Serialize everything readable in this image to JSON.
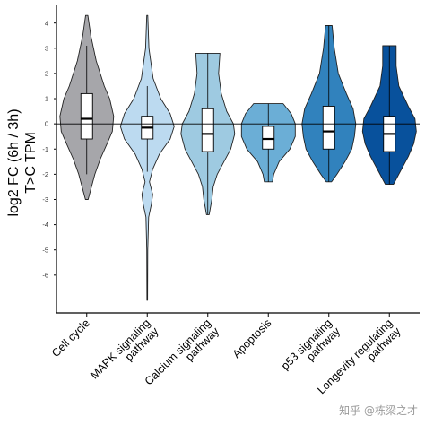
{
  "chart_data": {
    "type": "violin",
    "ylabel_lines": [
      "log2 FC (6h / 3h)",
      "T>C TPM"
    ],
    "xlabel": "",
    "ylim": [
      -7.5,
      4.7
    ],
    "yticks": [
      4,
      3,
      2,
      1,
      0,
      -1,
      -2,
      -3,
      -4,
      -5,
      -6
    ],
    "reference_line": 0,
    "categories": [
      {
        "lines": [
          "Cell cycle"
        ],
        "color": "#a6a6aa",
        "min": -3.0,
        "max": 4.3,
        "q1": -0.6,
        "median": 0.2,
        "q3": 1.2,
        "whisker_low": -2.0,
        "whisker_high": 3.1,
        "density": [
          [
            4.3,
            0.04
          ],
          [
            3.5,
            0.15
          ],
          [
            2.5,
            0.35
          ],
          [
            1.5,
            0.65
          ],
          [
            1.0,
            0.85
          ],
          [
            0.3,
            1.0
          ],
          [
            -0.3,
            0.95
          ],
          [
            -0.8,
            0.75
          ],
          [
            -1.4,
            0.5
          ],
          [
            -2.0,
            0.3
          ],
          [
            -2.6,
            0.15
          ],
          [
            -3.0,
            0.05
          ]
        ]
      },
      {
        "lines": [
          "MAPK signaling",
          "pathway"
        ],
        "color": "#bcdaf0",
        "min": -7.0,
        "max": 4.3,
        "q1": -0.6,
        "median": -0.15,
        "q3": 0.3,
        "whisker_low": -1.9,
        "whisker_high": 1.5,
        "density": [
          [
            4.3,
            0.02
          ],
          [
            3.0,
            0.06
          ],
          [
            1.8,
            0.22
          ],
          [
            1.0,
            0.5
          ],
          [
            0.4,
            0.85
          ],
          [
            -0.1,
            1.0
          ],
          [
            -0.6,
            0.85
          ],
          [
            -1.2,
            0.45
          ],
          [
            -1.8,
            0.2
          ],
          [
            -2.3,
            0.08
          ],
          [
            -2.8,
            0.2
          ],
          [
            -3.2,
            0.15
          ],
          [
            -3.7,
            0.05
          ],
          [
            -5.0,
            0.02
          ],
          [
            -7.0,
            0.01
          ]
        ]
      },
      {
        "lines": [
          "Calcium signaling",
          "pathway"
        ],
        "color": "#9ecae1",
        "min": -3.6,
        "max": 2.8,
        "q1": -1.1,
        "median": -0.4,
        "q3": 0.6,
        "whisker_low": -3.6,
        "whisker_high": 2.8,
        "density": [
          [
            2.8,
            0.45
          ],
          [
            2.0,
            0.4
          ],
          [
            1.2,
            0.5
          ],
          [
            0.5,
            0.7
          ],
          [
            0.0,
            0.95
          ],
          [
            -0.4,
            1.0
          ],
          [
            -1.0,
            0.85
          ],
          [
            -1.5,
            0.6
          ],
          [
            -2.0,
            0.35
          ],
          [
            -2.5,
            0.2
          ],
          [
            -3.0,
            0.15
          ],
          [
            -3.6,
            0.05
          ]
        ]
      },
      {
        "lines": [
          "Apoptosis"
        ],
        "color": "#6baed6",
        "min": -2.3,
        "max": 0.8,
        "q1": -1.0,
        "median": -0.6,
        "q3": -0.1,
        "whisker_low": -2.3,
        "whisker_high": 0.8,
        "density": [
          [
            0.8,
            0.55
          ],
          [
            0.4,
            0.85
          ],
          [
            0.0,
            1.0
          ],
          [
            -0.5,
            1.0
          ],
          [
            -1.0,
            0.8
          ],
          [
            -1.5,
            0.4
          ],
          [
            -2.0,
            0.2
          ],
          [
            -2.3,
            0.15
          ]
        ]
      },
      {
        "lines": [
          "p53 signaling",
          "pathway"
        ],
        "color": "#3182bd",
        "min": -2.3,
        "max": 3.9,
        "q1": -1.0,
        "median": -0.3,
        "q3": 0.7,
        "whisker_low": -2.3,
        "whisker_high": 3.9,
        "density": [
          [
            3.9,
            0.12
          ],
          [
            3.0,
            0.2
          ],
          [
            2.0,
            0.35
          ],
          [
            1.2,
            0.65
          ],
          [
            0.6,
            0.9
          ],
          [
            0.0,
            1.0
          ],
          [
            -0.5,
            0.95
          ],
          [
            -1.0,
            0.85
          ],
          [
            -1.5,
            0.6
          ],
          [
            -2.0,
            0.3
          ],
          [
            -2.3,
            0.1
          ]
        ]
      },
      {
        "lines": [
          "Longevity regulating",
          "pathway"
        ],
        "color": "#08519c",
        "min": -2.4,
        "max": 3.1,
        "q1": -1.1,
        "median": -0.4,
        "q3": 0.3,
        "whisker_low": -2.4,
        "whisker_high": 3.1,
        "density": [
          [
            3.1,
            0.25
          ],
          [
            2.3,
            0.25
          ],
          [
            1.5,
            0.35
          ],
          [
            0.7,
            0.7
          ],
          [
            0.2,
            0.95
          ],
          [
            -0.3,
            1.0
          ],
          [
            -0.8,
            0.9
          ],
          [
            -1.3,
            0.7
          ],
          [
            -1.8,
            0.45
          ],
          [
            -2.2,
            0.25
          ],
          [
            -2.4,
            0.15
          ]
        ]
      }
    ]
  },
  "watermark": "知乎 @栋梁之才"
}
